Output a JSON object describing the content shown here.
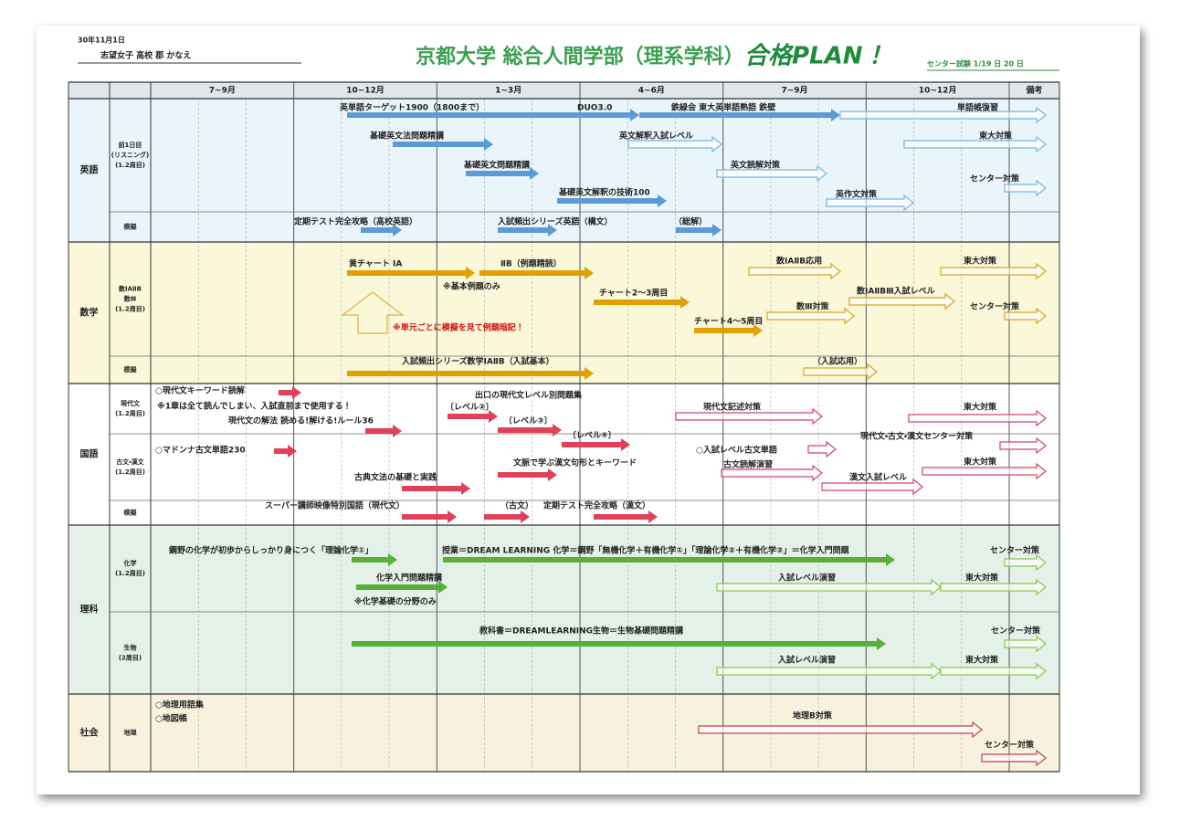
{
  "header": {
    "date": "30年11月1日",
    "student": "志望女子 高校 郡 かなえ",
    "title": "京都大学 総合人間学部（理系学科）",
    "title_accent": "合格PLAN！",
    "exam": "センター試験 1/19 日 20 日"
  },
  "columns": [
    "7~9月",
    "10~12月",
    "1~3月",
    "4~6月",
    "7~9月",
    "10~12月",
    "備考"
  ],
  "sections": [
    {
      "subject": "英語",
      "rows": [
        [
          "前1日目",
          "(リスニング)",
          "(1.2周目)"
        ],
        [
          "模擬"
        ]
      ],
      "items": [
        "英単語ターゲット1900（1800まで）",
        "DUO3.0",
        "鉄緑会 東大英単語熟語 鉄壁",
        "単語帳復習",
        "基礎英文法問題精講",
        "英文解釈入試レベル",
        "東大対策",
        "基礎英文問題精講",
        "英文読解対策",
        "センター対策",
        "基礎英文解釈の技術100",
        "英作文対策",
        "定期テスト完全攻略（高校英語）",
        "入試頻出シリーズ英語（構文）",
        "（総解）"
      ]
    },
    {
      "subject": "数学",
      "rows": [
        [
          "数ⅠAⅡB",
          "数Ⅲ",
          "(1.2周目)"
        ],
        [
          "模擬"
        ]
      ],
      "items": [
        "黄チャート ⅠA",
        "ⅡB（例題精読）",
        "※基本例題のみ",
        "チャート2～3周目",
        "数ⅠAⅡB応用",
        "東大対策",
        "数ⅠAⅡBⅢ入試レベル",
        "数Ⅲ対策",
        "センター対策",
        "チャート4～5周目",
        "※単元ごとに模擬を見て例題暗記！",
        "入試頻出シリーズ数学ⅠAⅡB（入試基本）",
        "（入試応用）"
      ]
    },
    {
      "subject": "国語",
      "rows": [
        [
          "現代文",
          "(1.2周目)"
        ],
        [
          "古文・漢文",
          "(1.2周目)"
        ],
        [
          "模擬"
        ]
      ],
      "items": [
        "○現代文キーワード読解",
        "※1章は全て読んでしまい、入試直前まで使用する！",
        "現代文の解法 読める!解ける!ルール36",
        "出口の現代文レベル別問題集",
        "〔レベル②〕",
        "〔レベル③〕",
        "〔レベル④〕",
        "現代文記述対策",
        "東大対策",
        "現代文・古文・漢文センター対策",
        "○マドンナ古文単語230",
        "○入試レベル古文単語",
        "文脈で学ぶ漢文句形とキーワード",
        "古文読解演習",
        "東大対策",
        "古典文法の基礎と実践",
        "漢文入試レベル",
        "スーパー講師映像特別国語（現代文）",
        "（古文）",
        "定期テスト完全攻略（漢文）"
      ]
    },
    {
      "subject": "理科",
      "rows": [
        [
          "化学",
          "(1.2周目)"
        ],
        [
          "生物",
          "(2周目)"
        ]
      ],
      "items": [
        "鋼野の化学が初歩からしっかり身につく「理論化学①」",
        "授業＝DREAM LEARNING 化学＝鋼野「無機化学＋有機化学①」「理論化学②＋有機化学②」＝化学入門問題",
        "センター対策",
        "化学入門問題精講",
        "入試レベル演習",
        "東大対策",
        "※化学基礎の分野のみ",
        "教科書＝DREAMLEARNING生物＝生物基礎問題精講",
        "センター対策",
        "入試レベル演習",
        "東大対策"
      ]
    },
    {
      "subject": "社会",
      "rows": [
        [
          "地理"
        ]
      ],
      "items": [
        "○地理用語集",
        "○地図帳",
        "地理B対策",
        "センター対策"
      ]
    }
  ]
}
